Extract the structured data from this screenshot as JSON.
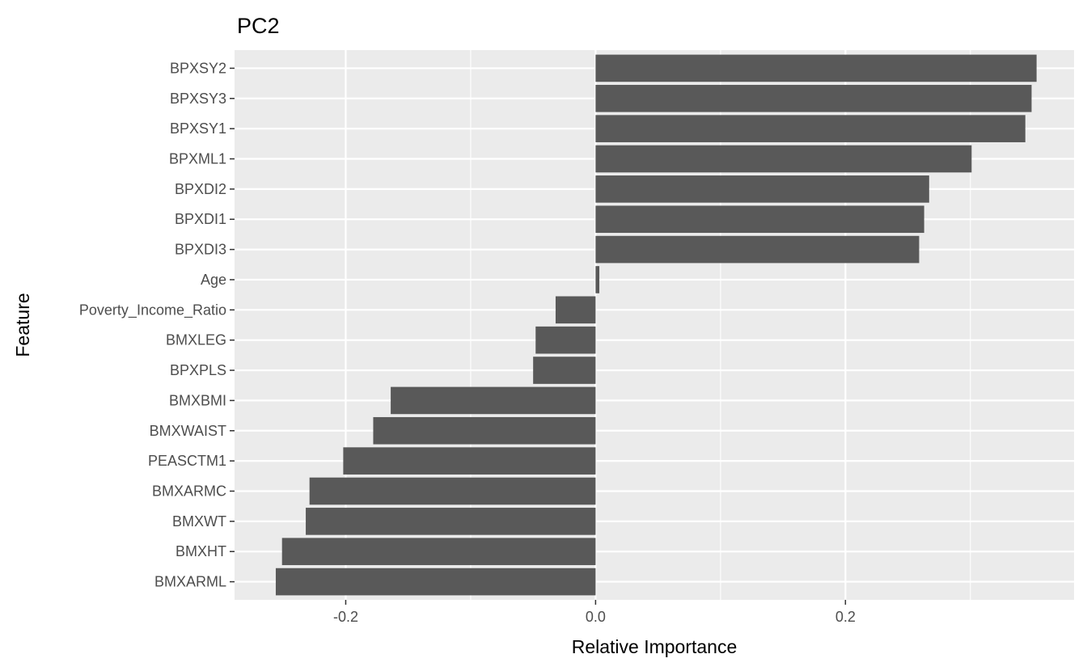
{
  "chart_data": {
    "type": "bar",
    "orientation": "horizontal",
    "title": "PC2",
    "xlabel": "Relative Importance",
    "ylabel": "Feature",
    "xlim": [
      -0.289,
      0.383
    ],
    "xticks": [
      -0.2,
      0.0,
      0.2
    ],
    "xtick_labels": [
      "-0.2",
      "0.0",
      "0.2"
    ],
    "grid": true,
    "bar_color": "#595959",
    "panel_color": "#ebebeb",
    "categories": [
      "BPXSY2",
      "BPXSY3",
      "BPXSY1",
      "BPXML1",
      "BPXDI2",
      "BPXDI1",
      "BPXDI3",
      "Age",
      "Poverty_Income_Ratio",
      "BMXLEG",
      "BPXPLS",
      "BMXBMI",
      "BMXWAIST",
      "PEASCTM1",
      "BMXARMC",
      "BMXWT",
      "BMXHT",
      "BMXARML"
    ],
    "values": [
      0.353,
      0.349,
      0.344,
      0.301,
      0.267,
      0.263,
      0.259,
      0.003,
      -0.032,
      -0.048,
      -0.05,
      -0.164,
      -0.178,
      -0.202,
      -0.229,
      -0.232,
      -0.251,
      -0.256
    ]
  }
}
